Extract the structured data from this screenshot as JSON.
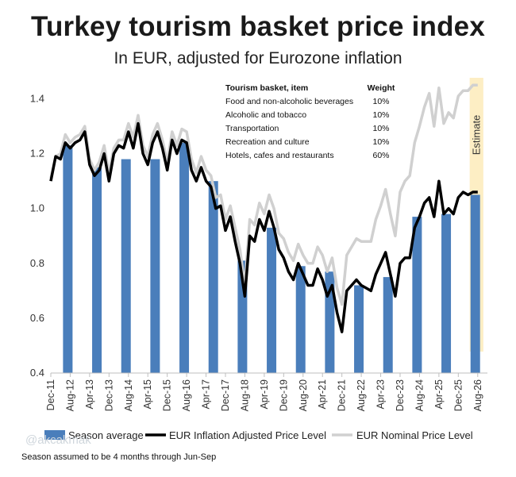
{
  "title": "Turkey tourism basket price index",
  "subtitle": "In EUR, adjusted for Eurozone inflation",
  "watermark": "@akcakmak",
  "footnote": "Season assumed to be 4 months through Jun-Sep",
  "estimate_label": "Estimate",
  "colors": {
    "bar": "#4a7ebb",
    "adjusted": "#000000",
    "nominal": "#d0d0d0",
    "estimate": "#fdeec4"
  },
  "basket_table": {
    "header_item": "Tourism basket, item",
    "header_weight": "Weight",
    "rows": [
      {
        "item": "Food and non-alcoholic beverages",
        "weight": "10%"
      },
      {
        "item": "Alcoholic and tobacco",
        "weight": "10%"
      },
      {
        "item": "Transportation",
        "weight": "10%"
      },
      {
        "item": "Recreation and culture",
        "weight": "10%"
      },
      {
        "item": "Hotels, cafes and restaurants",
        "weight": "60%"
      }
    ]
  },
  "chart_data": {
    "type": "bar",
    "title": "Turkey tourism basket price index",
    "subtitle": "In EUR, adjusted for Eurozone inflation",
    "xlim": [
      "Dec-11",
      "Dec-26"
    ],
    "ylim": [
      0.4,
      1.5
    ],
    "yticks": [
      0.4,
      0.6,
      0.8,
      1.0,
      1.2,
      1.4
    ],
    "yticklabels": [
      "0.4",
      "0.6",
      "0.8",
      "1.0",
      "1.2",
      "1.4"
    ],
    "xticks": [
      "Dec-11",
      "Aug-12",
      "Apr-13",
      "Dec-13",
      "Aug-14",
      "Apr-15",
      "Dec-15",
      "Aug-16",
      "Apr-17",
      "Dec-17",
      "Aug-18",
      "Apr-19",
      "Dec-19",
      "Aug-20",
      "Apr-21",
      "Dec-21",
      "Aug-22",
      "Apr-23",
      "Dec-23",
      "Aug-24",
      "Apr-25",
      "Dec-25",
      "Aug-26"
    ],
    "grid": false,
    "legend_position": "bottom",
    "estimate_period": [
      "Jun-26",
      "Sep-26"
    ],
    "series": [
      {
        "name": "Season average",
        "type": "bar",
        "categories": [
          "2012",
          "2013",
          "2014",
          "2015",
          "2016",
          "2017",
          "2018",
          "2019",
          "2020",
          "2021",
          "2022",
          "2023",
          "2024",
          "2025",
          "2026"
        ],
        "bar_centers": [
          "Jul-12",
          "Jul-13",
          "Jul-14",
          "Jul-15",
          "Jul-16",
          "Jul-17",
          "Jul-18",
          "Jul-19",
          "Jul-20",
          "Jul-21",
          "Jul-22",
          "Jul-23",
          "Jul-24",
          "Jul-25",
          "Jul-26"
        ],
        "values": [
          1.23,
          1.15,
          1.18,
          1.18,
          1.24,
          1.1,
          0.81,
          0.93,
          0.79,
          0.77,
          0.72,
          0.75,
          0.97,
          0.98,
          1.05
        ]
      },
      {
        "name": "EUR Inflation Adjusted Price Level",
        "type": "line",
        "x": [
          "Dec-11",
          "Feb-12",
          "Apr-12",
          "Jun-12",
          "Aug-12",
          "Oct-12",
          "Dec-12",
          "Feb-13",
          "Apr-13",
          "Jun-13",
          "Aug-13",
          "Oct-13",
          "Dec-13",
          "Feb-14",
          "Apr-14",
          "Jun-14",
          "Aug-14",
          "Oct-14",
          "Dec-14",
          "Feb-15",
          "Apr-15",
          "Jun-15",
          "Aug-15",
          "Oct-15",
          "Dec-15",
          "Feb-16",
          "Apr-16",
          "Jun-16",
          "Aug-16",
          "Oct-16",
          "Dec-16",
          "Feb-17",
          "Apr-17",
          "Jun-17",
          "Aug-17",
          "Oct-17",
          "Dec-17",
          "Feb-18",
          "Apr-18",
          "Jun-18",
          "Aug-18",
          "Oct-18",
          "Dec-18",
          "Feb-19",
          "Apr-19",
          "Jun-19",
          "Aug-19",
          "Oct-19",
          "Dec-19",
          "Feb-20",
          "Apr-20",
          "Jun-20",
          "Aug-20",
          "Oct-20",
          "Dec-20",
          "Feb-21",
          "Apr-21",
          "Jun-21",
          "Aug-21",
          "Oct-21",
          "Dec-21",
          "Feb-22",
          "Apr-22",
          "Jun-22",
          "Aug-22",
          "Oct-22",
          "Dec-22",
          "Feb-23",
          "Apr-23",
          "Jun-23",
          "Aug-23",
          "Oct-23",
          "Dec-23",
          "Feb-24",
          "Apr-24",
          "Jun-24",
          "Aug-24",
          "Oct-24",
          "Dec-24",
          "Feb-25",
          "Apr-25",
          "Jun-25",
          "Aug-25",
          "Oct-25",
          "Dec-25",
          "Feb-26",
          "Apr-26",
          "Jun-26",
          "Aug-26"
        ],
        "values": [
          1.1,
          1.19,
          1.18,
          1.24,
          1.22,
          1.24,
          1.25,
          1.28,
          1.16,
          1.12,
          1.14,
          1.2,
          1.1,
          1.2,
          1.23,
          1.22,
          1.28,
          1.22,
          1.31,
          1.2,
          1.16,
          1.24,
          1.28,
          1.22,
          1.14,
          1.25,
          1.2,
          1.25,
          1.24,
          1.14,
          1.1,
          1.15,
          1.1,
          1.08,
          1.0,
          1.01,
          0.92,
          0.97,
          0.88,
          0.8,
          0.68,
          0.9,
          0.88,
          0.96,
          0.92,
          0.99,
          0.93,
          0.85,
          0.82,
          0.77,
          0.74,
          0.8,
          0.76,
          0.72,
          0.72,
          0.78,
          0.74,
          0.68,
          0.72,
          0.62,
          0.55,
          0.7,
          0.72,
          0.74,
          0.72,
          0.71,
          0.7,
          0.76,
          0.8,
          0.84,
          0.76,
          0.68,
          0.8,
          0.82,
          0.82,
          0.93,
          0.97,
          1.02,
          1.04,
          0.97,
          1.1,
          0.98,
          1.0,
          0.98,
          1.04,
          1.06,
          1.05,
          1.06,
          1.06
        ]
      },
      {
        "name": "EUR Nominal Price Level",
        "type": "line",
        "x": [
          "Dec-11",
          "Feb-12",
          "Apr-12",
          "Jun-12",
          "Aug-12",
          "Oct-12",
          "Dec-12",
          "Feb-13",
          "Apr-13",
          "Jun-13",
          "Aug-13",
          "Oct-13",
          "Dec-13",
          "Feb-14",
          "Apr-14",
          "Jun-14",
          "Aug-14",
          "Oct-14",
          "Dec-14",
          "Feb-15",
          "Apr-15",
          "Jun-15",
          "Aug-15",
          "Oct-15",
          "Dec-15",
          "Feb-16",
          "Apr-16",
          "Jun-16",
          "Aug-16",
          "Oct-16",
          "Dec-16",
          "Feb-17",
          "Apr-17",
          "Jun-17",
          "Aug-17",
          "Oct-17",
          "Dec-17",
          "Feb-18",
          "Apr-18",
          "Jun-18",
          "Aug-18",
          "Oct-18",
          "Dec-18",
          "Feb-19",
          "Apr-19",
          "Jun-19",
          "Aug-19",
          "Oct-19",
          "Dec-19",
          "Feb-20",
          "Apr-20",
          "Jun-20",
          "Aug-20",
          "Oct-20",
          "Dec-20",
          "Feb-21",
          "Apr-21",
          "Jun-21",
          "Aug-21",
          "Oct-21",
          "Dec-21",
          "Feb-22",
          "Apr-22",
          "Jun-22",
          "Aug-22",
          "Oct-22",
          "Dec-22",
          "Feb-23",
          "Apr-23",
          "Jun-23",
          "Aug-23",
          "Oct-23",
          "Dec-23",
          "Feb-24",
          "Apr-24",
          "Jun-24",
          "Aug-24",
          "Oct-24",
          "Dec-24",
          "Feb-25",
          "Apr-25",
          "Jun-25",
          "Aug-25",
          "Oct-25",
          "Dec-25",
          "Feb-26",
          "Apr-26",
          "Jun-26",
          "Aug-26"
        ],
        "values": [
          1.11,
          1.19,
          1.2,
          1.27,
          1.24,
          1.26,
          1.27,
          1.3,
          1.18,
          1.14,
          1.17,
          1.23,
          1.13,
          1.22,
          1.25,
          1.25,
          1.31,
          1.26,
          1.34,
          1.23,
          1.19,
          1.27,
          1.31,
          1.25,
          1.17,
          1.28,
          1.23,
          1.29,
          1.28,
          1.18,
          1.13,
          1.19,
          1.14,
          1.12,
          1.04,
          1.05,
          0.96,
          1.01,
          0.93,
          0.85,
          0.72,
          0.96,
          0.94,
          1.02,
          0.98,
          1.05,
          1.0,
          0.91,
          0.89,
          0.84,
          0.81,
          0.87,
          0.83,
          0.8,
          0.8,
          0.86,
          0.83,
          0.77,
          0.82,
          0.71,
          0.65,
          0.83,
          0.86,
          0.89,
          0.88,
          0.88,
          0.88,
          0.96,
          1.01,
          1.07,
          0.98,
          0.9,
          1.06,
          1.1,
          1.12,
          1.24,
          1.3,
          1.37,
          1.42,
          1.3,
          1.44,
          1.31,
          1.35,
          1.33,
          1.41,
          1.43,
          1.43,
          1.45,
          1.45
        ]
      }
    ]
  }
}
